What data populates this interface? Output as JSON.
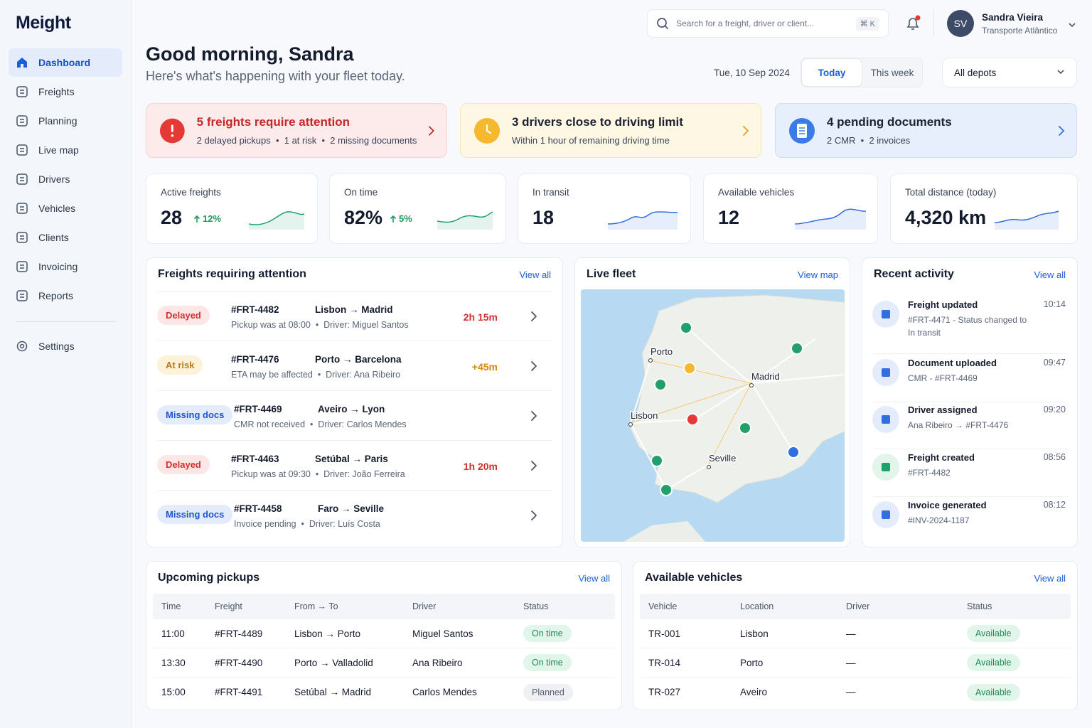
{
  "brand": "Meight",
  "nav": [
    {
      "label": "Dashboard",
      "active": true
    },
    {
      "label": "Freights"
    },
    {
      "label": "Planning"
    },
    {
      "label": "Live map"
    },
    {
      "label": "Drivers"
    },
    {
      "label": "Vehicles"
    },
    {
      "label": "Clients"
    },
    {
      "label": "Invoicing"
    },
    {
      "label": "Reports"
    }
  ],
  "settings": "Settings",
  "search": {
    "placeholder": "Search for a freight, driver or client...",
    "shortcut": "⌘ K"
  },
  "user": {
    "initials": "SV",
    "name": "Sandra Vieira",
    "company": "Transporte Atlântico"
  },
  "header": {
    "greeting": "Good morning, Sandra",
    "subtitle": "Here's what's happening with your fleet today.",
    "date": "Tue, 10 Sep 2024",
    "tabs": [
      "Today",
      "This week"
    ],
    "depot": "All depots"
  },
  "alerts": [
    {
      "title": "5 freights require attention",
      "detail": "2 delayed pickups  •  1 at risk  •  2 missing documents",
      "tone": "red"
    },
    {
      "title": "3 drivers close to driving limit",
      "detail": "Within 1 hour of remaining driving time",
      "tone": "amber"
    },
    {
      "title": "4 pending documents",
      "detail": "2 CMR  •  2 invoices",
      "tone": "blue"
    }
  ],
  "kpis": [
    {
      "label": "Active freights",
      "value": "28",
      "change": "12%",
      "tone": "green"
    },
    {
      "label": "On time",
      "value": "82%",
      "change": "5%",
      "tone": "green"
    },
    {
      "label": "In transit",
      "value": "18",
      "tone": "blue"
    },
    {
      "label": "Available vehicles",
      "value": "12",
      "tone": "blue"
    },
    {
      "label": "Total distance (today)",
      "value": "4,320 km",
      "tone": "blue"
    }
  ],
  "attention": {
    "title": "Freights requiring attention",
    "link": "View all",
    "rows": [
      {
        "status": "Delayed",
        "tone": "red",
        "id": "#FRT-4482",
        "route": "Lisbon → Madrid",
        "detail": "Pickup was at 08:00  •  Driver: Miguel Santos",
        "delay": "2h 15m"
      },
      {
        "status": "At risk",
        "tone": "amber",
        "id": "#FRT-4476",
        "route": "Porto → Barcelona",
        "detail": "ETA may be affected  •  Driver: Ana Ribeiro",
        "delay": "+45m"
      },
      {
        "status": "Missing docs",
        "tone": "blue",
        "id": "#FRT-4469",
        "route": "Aveiro → Lyon",
        "detail": "CMR not received  •  Driver: Carlos Mendes"
      },
      {
        "status": "Delayed",
        "tone": "red",
        "id": "#FRT-4463",
        "route": "Setúbal → Paris",
        "detail": "Pickup was at 09:30  •  Driver: João Ferreira",
        "delay": "1h 20m"
      },
      {
        "status": "Missing docs",
        "tone": "blue",
        "id": "#FRT-4458",
        "route": "Faro → Seville",
        "detail": "Invoice pending  •  Driver: Luís Costa"
      }
    ]
  },
  "fleet": {
    "title": "Live fleet",
    "link": "View map",
    "cities": [
      "Porto",
      "Madrid",
      "Lisbon",
      "Seville"
    ]
  },
  "activity": {
    "title": "Recent activity",
    "link": "View all",
    "items": [
      {
        "title": "Freight updated",
        "detail": "#FRT-4471 - Status changed to In transit",
        "time": "10:14",
        "tone": "blue"
      },
      {
        "title": "Document uploaded",
        "detail": "CMR - #FRT-4469",
        "time": "09:47",
        "tone": "blue"
      },
      {
        "title": "Driver assigned",
        "detail": "Ana Ribeiro → #FRT-4476",
        "time": "09:20",
        "tone": "blue"
      },
      {
        "title": "Freight created",
        "detail": "#FRT-4482",
        "time": "08:56",
        "tone": "green"
      },
      {
        "title": "Invoice generated",
        "detail": "#INV-2024-1187",
        "time": "08:12",
        "tone": "blue"
      }
    ]
  },
  "pickups": {
    "title": "Upcoming pickups",
    "link": "View all",
    "columns": [
      "Time",
      "Freight",
      "From → To",
      "Driver",
      "Status"
    ],
    "rows": [
      {
        "cells": [
          "11:00",
          "#FRT-4489",
          "Lisbon → Porto",
          "Miguel Santos",
          "On time"
        ],
        "tone": "green"
      },
      {
        "cells": [
          "13:30",
          "#FRT-4490",
          "Porto → Valladolid",
          "Ana Ribeiro",
          "On time"
        ],
        "tone": "green"
      },
      {
        "cells": [
          "15:00",
          "#FRT-4491",
          "Setúbal → Madrid",
          "Carlos Mendes",
          "Planned"
        ],
        "tone": "gray"
      }
    ]
  },
  "vehicles": {
    "title": "Available vehicles",
    "link": "View all",
    "columns": [
      "Vehicle",
      "Location",
      "Driver",
      "Status"
    ],
    "rows": [
      {
        "cells": [
          "TR-001",
          "Lisbon",
          "—",
          "Available"
        ],
        "tone": "green"
      },
      {
        "cells": [
          "TR-014",
          "Porto",
          "—",
          "Available"
        ],
        "tone": "green"
      },
      {
        "cells": [
          "TR-027",
          "Aveiro",
          "—",
          "Available"
        ],
        "tone": "green"
      }
    ]
  }
}
